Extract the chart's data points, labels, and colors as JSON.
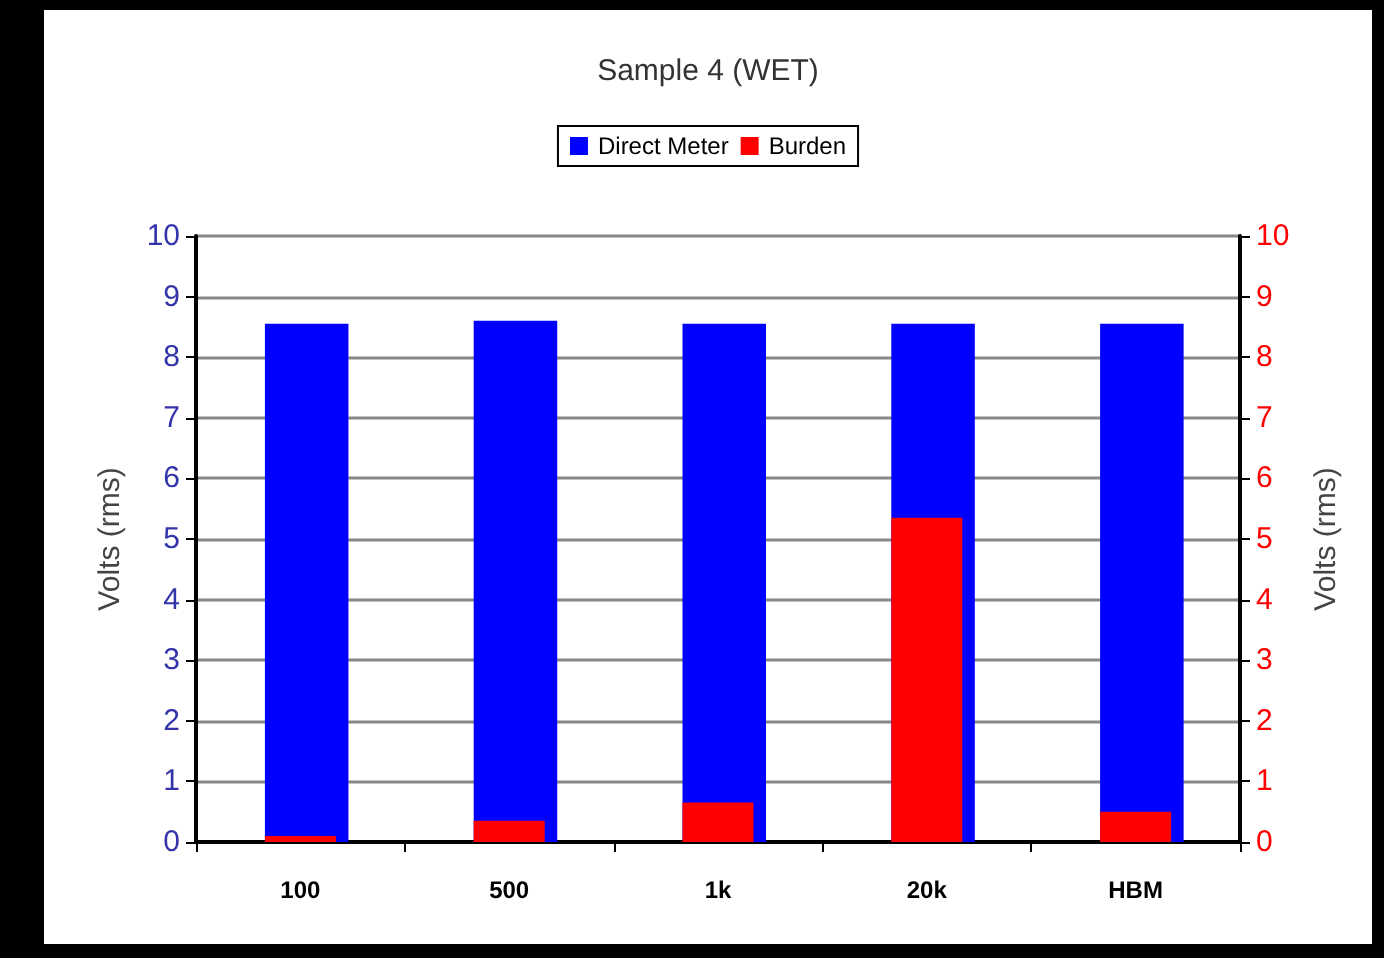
{
  "chart_data": {
    "type": "bar",
    "title": "Sample 4 (WET)",
    "categories": [
      "100",
      "500",
      "1k",
      "20k",
      "HBM"
    ],
    "series": [
      {
        "name": "Direct Meter",
        "color": "#0000ff",
        "values": [
          8.55,
          8.6,
          8.55,
          8.55,
          8.55
        ]
      },
      {
        "name": "Burden",
        "color": "#ff0000",
        "axis": "y2",
        "values": [
          0.1,
          0.35,
          0.65,
          5.35,
          0.5
        ]
      }
    ],
    "ylabel": "Volts (rms)",
    "y2label": "Volts (rms)",
    "ylim": [
      0,
      10
    ],
    "yticks": [
      0,
      1,
      2,
      3,
      4,
      5,
      6,
      7,
      8,
      9,
      10
    ],
    "y2lim": [
      0,
      10
    ],
    "y2ticks": [
      0,
      1,
      2,
      3,
      4,
      5,
      6,
      7,
      8,
      9,
      10
    ],
    "grid": "y",
    "legend": "top"
  }
}
